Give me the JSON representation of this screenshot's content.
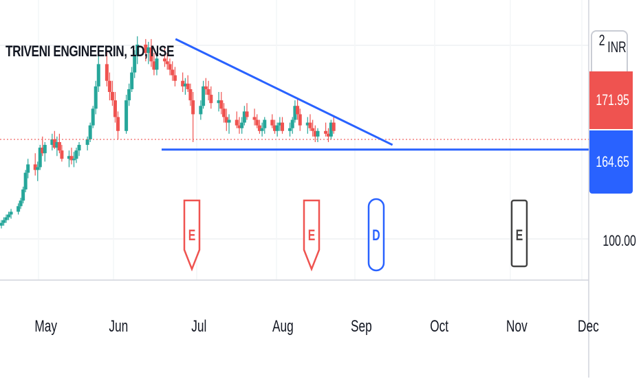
{
  "ticker_title": "TRIVENI ENGINEERIN, 1D, NSE",
  "currency": {
    "prefix": "2",
    "label": "INR"
  },
  "price_axis": {
    "last_price": "171.95",
    "level_price": "164.65",
    "tick_100": "100.00"
  },
  "time_axis": [
    "May",
    "Jun",
    "Jul",
    "Aug",
    "Sep",
    "Oct",
    "Nov",
    "Dec"
  ],
  "events": [
    {
      "letter": "E",
      "type": "earnings"
    },
    {
      "letter": "E",
      "type": "earnings"
    },
    {
      "letter": "D",
      "type": "dividend"
    },
    {
      "letter": "E",
      "type": "earnings-upcoming"
    }
  ],
  "colors": {
    "up": "#26a69a",
    "down": "#ef5350",
    "trendline": "#2962ff",
    "last_price_tag": "#ef5350",
    "level_tag": "#2962ff",
    "upcoming_event": "#444444"
  },
  "chart_data": {
    "type": "candlestick",
    "interval": "1D",
    "ylim": [
      88,
      245
    ],
    "start_date": "2023-04-22",
    "trading_dates": "weekdays",
    "ohlc": [
      [
        98,
        104,
        96,
        102
      ],
      [
        102,
        106,
        100,
        104
      ],
      [
        104,
        108,
        102,
        106
      ],
      [
        106,
        110,
        104,
        108
      ],
      [
        108,
        112,
        106,
        110
      ],
      [
        110,
        114,
        108,
        112
      ],
      [
        112,
        116,
        110,
        114
      ],
      [
        114,
        118,
        112,
        116
      ],
      [
        116,
        120,
        114,
        118
      ],
      [
        118,
        122,
        115,
        120
      ],
      [
        120,
        126,
        118,
        124
      ],
      [
        124,
        130,
        122,
        128
      ],
      [
        128,
        138,
        126,
        136
      ],
      [
        136,
        150,
        134,
        148
      ],
      [
        148,
        158,
        144,
        154
      ],
      [
        154,
        162,
        146,
        150
      ],
      [
        150,
        156,
        142,
        152
      ],
      [
        152,
        168,
        150,
        166
      ],
      [
        166,
        174,
        160,
        162
      ],
      [
        162,
        170,
        156,
        168
      ],
      [
        168,
        176,
        164,
        172
      ],
      [
        172,
        178,
        165,
        166
      ],
      [
        166,
        174,
        160,
        170
      ],
      [
        170,
        176,
        162,
        164
      ],
      [
        164,
        168,
        156,
        158
      ],
      [
        158,
        164,
        152,
        160
      ],
      [
        160,
        166,
        154,
        157
      ],
      [
        157,
        163,
        152,
        158
      ],
      [
        158,
        166,
        155,
        164
      ],
      [
        164,
        170,
        160,
        168
      ],
      [
        168,
        174,
        164,
        172
      ],
      [
        172,
        184,
        170,
        182
      ],
      [
        182,
        196,
        180,
        194
      ],
      [
        194,
        214,
        190,
        210
      ],
      [
        210,
        232,
        206,
        226
      ],
      [
        226,
        236,
        210,
        214
      ],
      [
        214,
        220,
        200,
        206
      ],
      [
        206,
        214,
        196,
        200
      ],
      [
        200,
        206,
        184,
        188
      ],
      [
        188,
        192,
        172,
        178
      ],
      [
        178,
        204,
        176,
        200
      ],
      [
        200,
        212,
        196,
        208
      ],
      [
        208,
        224,
        206,
        220
      ],
      [
        220,
        236,
        216,
        232
      ],
      [
        232,
        246,
        226,
        240
      ],
      [
        240,
        244,
        228,
        234
      ],
      [
        234,
        242,
        226,
        238
      ],
      [
        238,
        244,
        224,
        228
      ],
      [
        228,
        234,
        218,
        222
      ],
      [
        222,
        232,
        218,
        230
      ],
      [
        230,
        238,
        224,
        228
      ],
      [
        228,
        234,
        222,
        226
      ],
      [
        226,
        230,
        218,
        222
      ],
      [
        222,
        228,
        214,
        218
      ],
      [
        218,
        224,
        210,
        214
      ],
      [
        214,
        220,
        206,
        210
      ],
      [
        210,
        216,
        204,
        212
      ],
      [
        212,
        218,
        206,
        208
      ],
      [
        208,
        212,
        196,
        200
      ],
      [
        200,
        206,
        170,
        190
      ],
      [
        190,
        200,
        186,
        196
      ],
      [
        196,
        214,
        194,
        210
      ],
      [
        210,
        216,
        204,
        208
      ],
      [
        208,
        214,
        200,
        204
      ],
      [
        204,
        210,
        194,
        198
      ],
      [
        198,
        206,
        192,
        200
      ],
      [
        200,
        206,
        190,
        194
      ],
      [
        194,
        198,
        184,
        188
      ],
      [
        188,
        194,
        178,
        184
      ],
      [
        184,
        190,
        176,
        186
      ],
      [
        186,
        192,
        180,
        182
      ],
      [
        182,
        188,
        176,
        180
      ],
      [
        180,
        188,
        176,
        184
      ],
      [
        184,
        196,
        182,
        192
      ],
      [
        192,
        198,
        186,
        188
      ],
      [
        188,
        194,
        182,
        186
      ],
      [
        186,
        190,
        180,
        182
      ],
      [
        182,
        186,
        176,
        178
      ],
      [
        178,
        184,
        174,
        180
      ],
      [
        180,
        188,
        176,
        186
      ],
      [
        186,
        190,
        180,
        182
      ],
      [
        182,
        186,
        176,
        178
      ],
      [
        178,
        184,
        174,
        182
      ],
      [
        182,
        188,
        178,
        184
      ],
      [
        184,
        188,
        176,
        178
      ],
      [
        178,
        184,
        174,
        180
      ],
      [
        180,
        188,
        176,
        186
      ],
      [
        186,
        200,
        184,
        196
      ],
      [
        196,
        202,
        186,
        190
      ],
      [
        190,
        194,
        178,
        182
      ],
      [
        182,
        188,
        176,
        184
      ],
      [
        184,
        190,
        178,
        180
      ],
      [
        180,
        186,
        174,
        178
      ],
      [
        178,
        182,
        170,
        174
      ],
      [
        174,
        180,
        170,
        178
      ],
      [
        178,
        184,
        174,
        176
      ],
      [
        176,
        180,
        170,
        174
      ],
      [
        174,
        186,
        172,
        184
      ],
      [
        184,
        188,
        176,
        178
      ]
    ],
    "trendline_resistance": [
      {
        "date": "2023-07-04",
        "price": 244
      },
      {
        "date": "2023-09-26",
        "price": 168
      }
    ],
    "support_level": 164.65,
    "last_price": 171.95
  }
}
